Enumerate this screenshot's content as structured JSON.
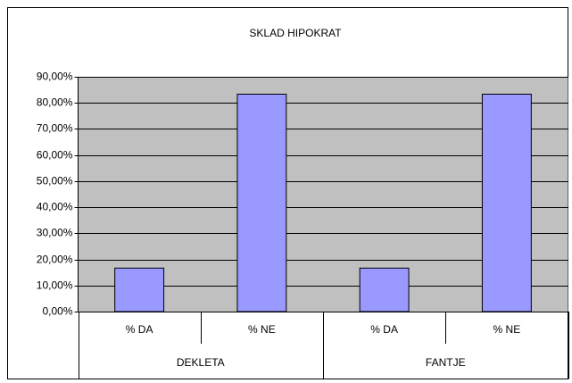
{
  "chart_data": {
    "type": "bar",
    "title": "SKLAD HIPOKRAT",
    "categories": [
      "% DA",
      "% NE",
      "% DA",
      "% NE"
    ],
    "groups": [
      "DEKLETA",
      "FANTJE"
    ],
    "values": [
      16.67,
      83.33,
      16.67,
      83.33
    ],
    "color": "#9999ff",
    "ylim": [
      0,
      90
    ],
    "yticks": [
      {
        "value": 0,
        "label": "0,00%"
      },
      {
        "value": 10,
        "label": "10,00%"
      },
      {
        "value": 20,
        "label": "20,00%"
      },
      {
        "value": 30,
        "label": "30,00%"
      },
      {
        "value": 40,
        "label": "40,00%"
      },
      {
        "value": 50,
        "label": "50,00%"
      },
      {
        "value": 60,
        "label": "60,00%"
      },
      {
        "value": 70,
        "label": "70,00%"
      },
      {
        "value": 80,
        "label": "80,00%"
      },
      {
        "value": 90,
        "label": "90,00%"
      }
    ],
    "grid": true
  }
}
